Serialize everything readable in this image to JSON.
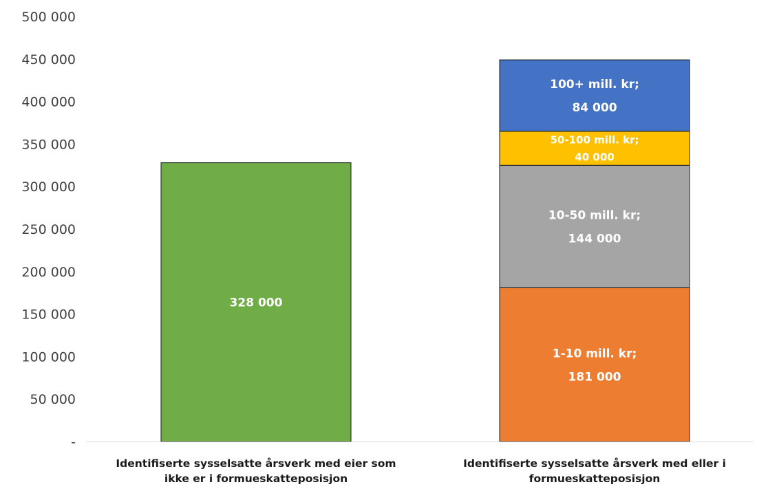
{
  "chart_data": {
    "type": "bar",
    "stacked": true,
    "title": "",
    "xlabel": "",
    "ylabel": "",
    "ylim": [
      0,
      500000
    ],
    "y_ticks": [
      0,
      50000,
      100000,
      150000,
      200000,
      250000,
      300000,
      350000,
      400000,
      450000,
      500000
    ],
    "y_tick_labels": [
      "-",
      "50 000",
      "100 000",
      "150 000",
      "200 000",
      "250 000",
      "300 000",
      "350 000",
      "400 000",
      "450 000",
      "500 000"
    ],
    "grid": false,
    "legend": "none",
    "categories": [
      [
        "Identifiserte sysselsatte årsverk med eier som",
        "ikke er i formueskatteposisjon"
      ],
      [
        "Identifiserte sysselsatte årsverk med eller i",
        "formueskatteposisjon"
      ]
    ],
    "bars": [
      {
        "segments": [
          {
            "value": 328000,
            "color": "#70AD47",
            "label_lines": [
              "328 000"
            ]
          }
        ]
      },
      {
        "segments": [
          {
            "value": 181000,
            "color": "#ED7D31",
            "label_lines": [
              "1-10 mill. kr;",
              "181 000"
            ]
          },
          {
            "value": 144000,
            "color": "#A5A5A5",
            "label_lines": [
              "10-50 mill. kr;",
              "144 000"
            ]
          },
          {
            "value": 40000,
            "color": "#FFC000",
            "label_lines": [
              "50-100 mill. kr;",
              "40 000"
            ]
          },
          {
            "value": 84000,
            "color": "#4472C4",
            "label_lines": [
              "100+ mill. kr;",
              "84 000"
            ]
          }
        ]
      }
    ]
  }
}
